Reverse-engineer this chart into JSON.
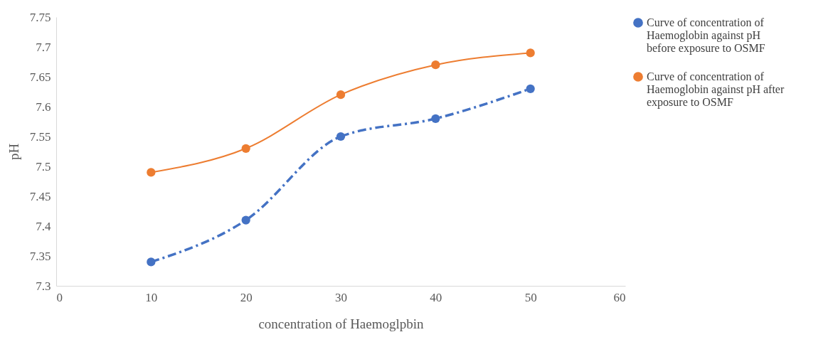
{
  "chart_data": {
    "type": "line",
    "xlabel": "concentration of Haemoglpbin",
    "ylabel": "pH",
    "x": [
      10,
      20,
      30,
      40,
      50
    ],
    "series": [
      {
        "name": "Curve of concentration of Haemoglobin against pH before exposure to OSMF",
        "color": "#4472c4",
        "line_style": "dashed",
        "values": [
          7.34,
          7.41,
          7.55,
          7.58,
          7.63
        ]
      },
      {
        "name": "Curve of concentration of Haemoglobin against pH after exposure to OSMF",
        "color": "#ed7d31",
        "line_style": "solid",
        "values": [
          7.49,
          7.53,
          7.62,
          7.67,
          7.69
        ]
      }
    ],
    "xlim": [
      0,
      60
    ],
    "xticks": [
      0,
      10,
      20,
      30,
      40,
      50,
      60
    ],
    "ylim": [
      7.3,
      7.75
    ],
    "yticks": [
      7.3,
      7.35,
      7.4,
      7.45,
      7.5,
      7.55,
      7.6,
      7.65,
      7.7,
      7.75
    ],
    "grid": false,
    "legend": "right",
    "marker": "circle"
  }
}
